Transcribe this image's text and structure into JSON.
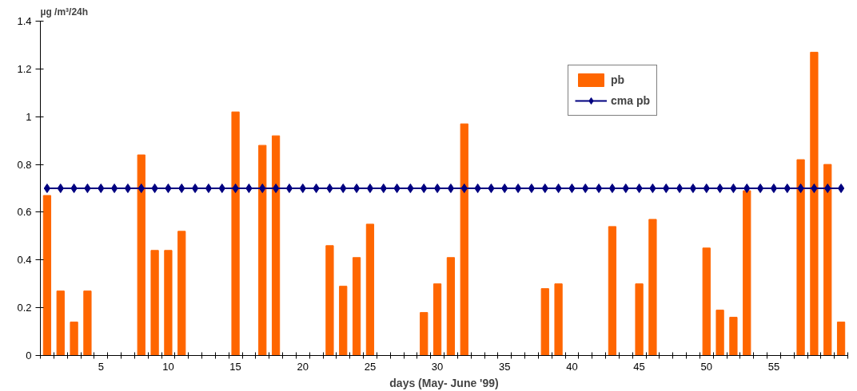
{
  "chart_data": {
    "type": "bar",
    "ylabel": "µg /m³/24h",
    "xlabel": "days (May- June '99)",
    "categories": [
      null,
      null,
      null,
      null,
      "5",
      null,
      null,
      null,
      null,
      "10",
      null,
      null,
      null,
      null,
      "15",
      null,
      null,
      null,
      null,
      "20",
      null,
      null,
      null,
      null,
      "25",
      null,
      null,
      null,
      null,
      "30",
      null,
      null,
      null,
      null,
      "35",
      null,
      null,
      null,
      null,
      "40",
      null,
      null,
      null,
      null,
      "45",
      null,
      null,
      null,
      null,
      "50",
      null,
      null,
      null,
      null,
      "55",
      null,
      null,
      null,
      null,
      null
    ],
    "series": [
      {
        "name": "pb",
        "color": "#ff6600",
        "values": [
          0.67,
          0.27,
          0.14,
          0.27,
          null,
          null,
          null,
          0.84,
          0.44,
          0.44,
          0.52,
          null,
          null,
          null,
          1.02,
          null,
          0.88,
          0.92,
          null,
          null,
          null,
          0.46,
          0.29,
          0.41,
          0.55,
          null,
          null,
          null,
          0.18,
          0.3,
          0.41,
          0.97,
          null,
          null,
          null,
          null,
          null,
          0.28,
          0.3,
          null,
          null,
          null,
          0.54,
          null,
          0.3,
          0.57,
          null,
          null,
          null,
          0.45,
          0.19,
          0.16,
          0.69,
          null,
          null,
          null,
          0.82,
          1.27,
          0.8,
          0.14
        ]
      },
      {
        "name": "cma pb",
        "type": "line",
        "color": "#000080",
        "marker": "diamond",
        "values": [
          0.7,
          0.7,
          0.7,
          0.7,
          0.7,
          0.7,
          0.7,
          0.7,
          0.7,
          0.7,
          0.7,
          0.7,
          0.7,
          0.7,
          0.7,
          0.7,
          0.7,
          0.7,
          0.7,
          0.7,
          0.7,
          0.7,
          0.7,
          0.7,
          0.7,
          0.7,
          0.7,
          0.7,
          0.7,
          0.7,
          0.7,
          0.7,
          0.7,
          0.7,
          0.7,
          0.7,
          0.7,
          0.7,
          0.7,
          0.7,
          0.7,
          0.7,
          0.7,
          0.7,
          0.7,
          0.7,
          0.7,
          0.7,
          0.7,
          0.7,
          0.7,
          0.7,
          0.7,
          0.7,
          0.7,
          0.7,
          0.7,
          0.7,
          0.7,
          0.7
        ]
      }
    ],
    "ylim": [
      0,
      1.4
    ],
    "yticks": [
      0,
      {
        "value": 0.2,
        "label": "0.2"
      },
      {
        "value": 0.4,
        "label": "0.4"
      },
      {
        "value": 0.6,
        "label": "0.6"
      },
      {
        "value": 0.8,
        "label": "0.8"
      },
      1,
      {
        "value": 1.2,
        "label": "1.2"
      },
      {
        "value": 1.4,
        "label": "1.4"
      }
    ],
    "grid": false,
    "legend": "top right"
  }
}
